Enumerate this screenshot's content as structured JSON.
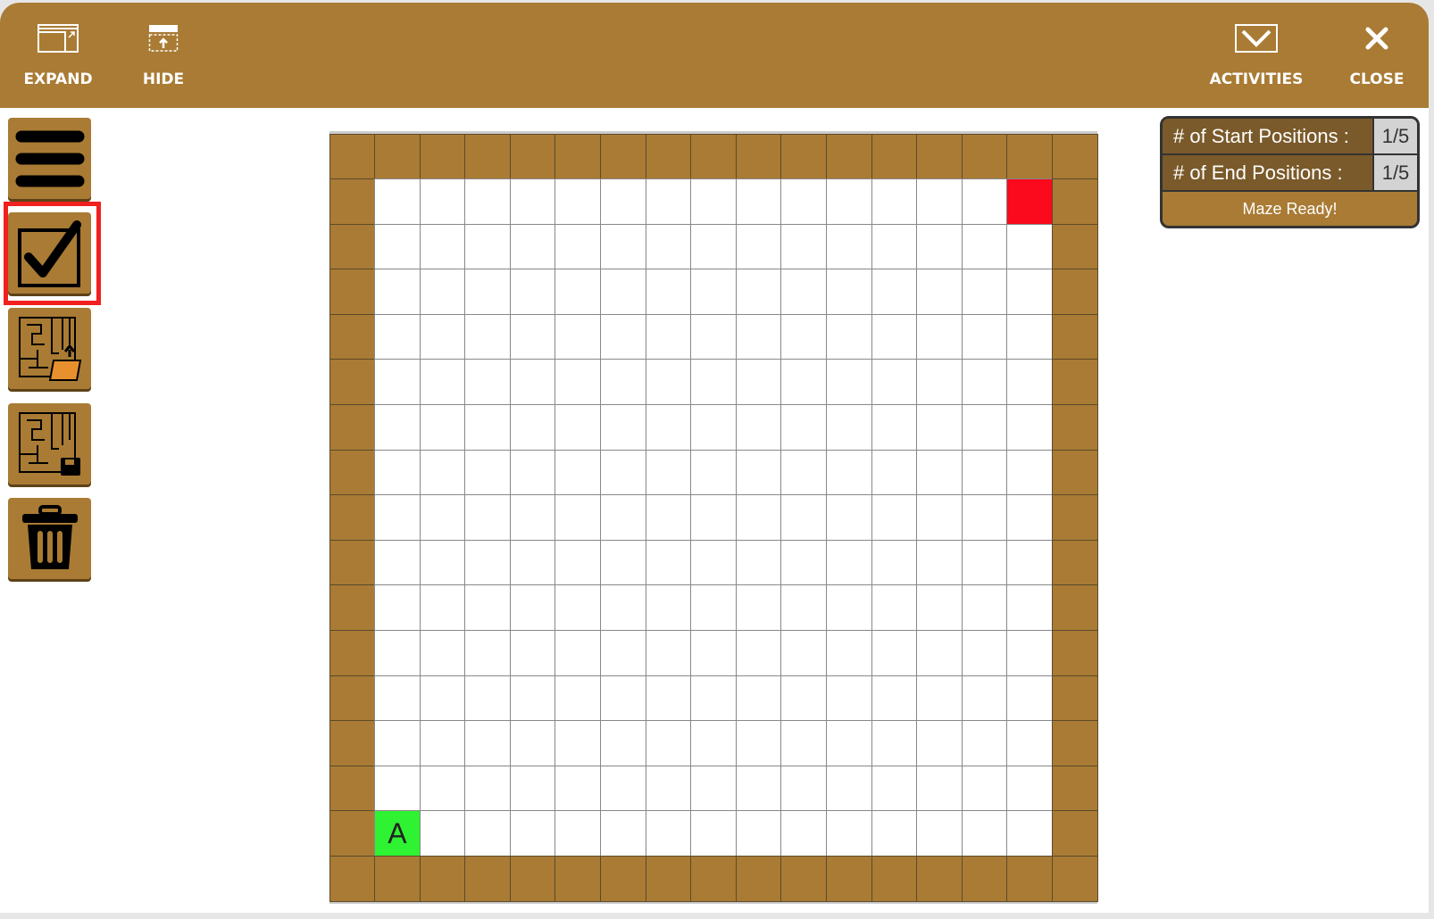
{
  "toolbar": {
    "expand": "EXPAND",
    "hide": "HIDE",
    "activities": "ACTIVITIES",
    "close": "CLOSE"
  },
  "sidebar": {
    "items": [
      "menu",
      "check-maze",
      "load-maze",
      "save-maze",
      "delete-maze"
    ],
    "selected": "check-maze"
  },
  "maze": {
    "rows": 17,
    "cols": 17,
    "start": {
      "row": 15,
      "col": 1,
      "label": "A"
    },
    "end": {
      "row": 1,
      "col": 15
    },
    "colors": {
      "wall": "#a97b34",
      "start": "#2ef232",
      "end": "#fa0a1c",
      "empty": "#ffffff"
    }
  },
  "panel": {
    "start_label": "# of Start Positions :",
    "start_value": "1/5",
    "end_label": "# of End Positions :",
    "end_value": "1/5",
    "status": "Maze Ready!"
  }
}
